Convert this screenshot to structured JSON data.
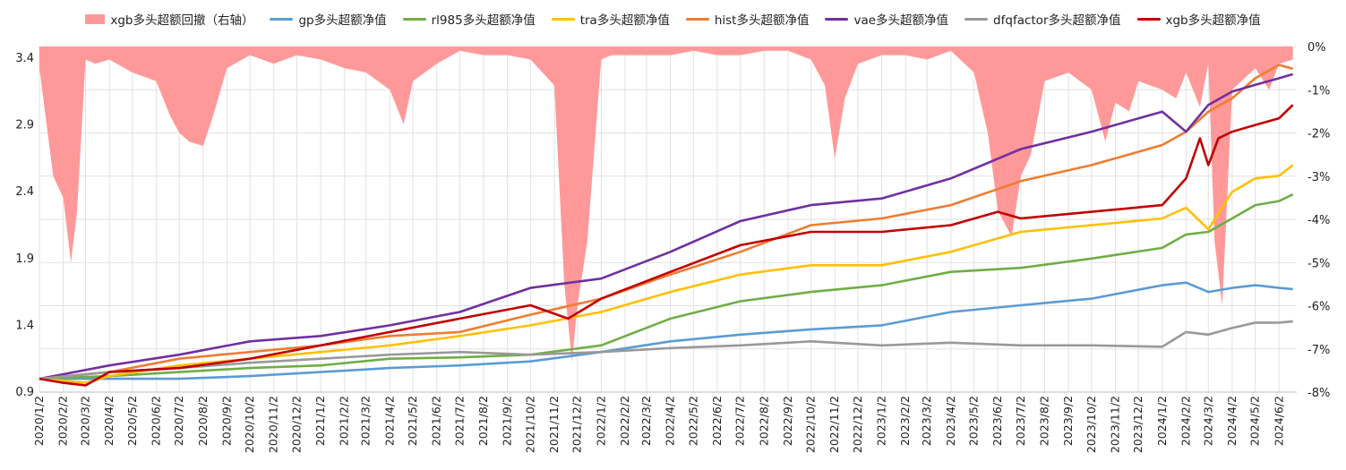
{
  "chart_data": {
    "type": "line",
    "title": "",
    "x_tick_labels": [
      "2020/1/2",
      "2020/2/2",
      "2020/3/2",
      "2020/4/2",
      "2020/5/2",
      "2020/6/2",
      "2020/7/2",
      "2020/8/2",
      "2020/9/2",
      "2020/10/2",
      "2020/11/2",
      "2020/12/2",
      "2021/1/2",
      "2021/2/2",
      "2021/3/2",
      "2021/4/2",
      "2021/5/2",
      "2021/6/2",
      "2021/7/2",
      "2021/8/2",
      "2021/9/2",
      "2021/10/2",
      "2021/11/2",
      "2021/12/2",
      "2022/1/2",
      "2022/2/2",
      "2022/3/2",
      "2022/4/2",
      "2022/5/2",
      "2022/6/2",
      "2022/7/2",
      "2022/8/2",
      "2022/9/2",
      "2022/10/2",
      "2022/11/2",
      "2022/12/2",
      "2023/1/2",
      "2023/2/2",
      "2023/3/2",
      "2023/4/2",
      "2023/5/2",
      "2023/6/2",
      "2023/7/2",
      "2023/8/2",
      "2023/9/2",
      "2023/10/2",
      "2023/11/2",
      "2023/12/2",
      "2024/1/2",
      "2024/2/2",
      "2024/3/2",
      "2024/4/2",
      "2024/5/2",
      "2024/6/2"
    ],
    "y_left": {
      "min": 0.9,
      "max": 3.4,
      "ticks": [
        "0.9",
        "1.4",
        "1.9",
        "2.4",
        "2.9",
        "3.4"
      ]
    },
    "y_right": {
      "min": -8,
      "max": 0,
      "ticks": [
        "0%",
        "-1%",
        "-2%",
        "-3%",
        "-4%",
        "-5%",
        "-6%",
        "-7%",
        "-8%"
      ]
    },
    "grid": true,
    "legend_position": "top",
    "area_series": {
      "name": "xgb多头超额回撤（右轴）",
      "color": "#ff9999",
      "x": [
        "2020/1/2",
        "2020/1/20",
        "2020/2/2",
        "2020/2/12",
        "2020/2/20",
        "2020/3/2",
        "2020/3/15",
        "2020/4/2",
        "2020/5/2",
        "2020/6/2",
        "2020/6/20",
        "2020/7/2",
        "2020/7/15",
        "2020/8/2",
        "2020/8/15",
        "2020/9/2",
        "2020/10/2",
        "2020/11/2",
        "2020/12/2",
        "2021/1/2",
        "2021/2/2",
        "2021/3/2",
        "2021/4/2",
        "2021/4/20",
        "2021/5/2",
        "2021/6/2",
        "2021/7/2",
        "2021/8/2",
        "2021/9/2",
        "2021/10/2",
        "2021/11/2",
        "2021/11/15",
        "2021/11/25",
        "2021/12/2",
        "2021/12/15",
        "2022/1/2",
        "2022/1/15",
        "2022/2/2",
        "2022/3/2",
        "2022/4/2",
        "2022/5/2",
        "2022/6/2",
        "2022/7/2",
        "2022/8/2",
        "2022/9/2",
        "2022/10/2",
        "2022/10/20",
        "2022/11/2",
        "2022/11/15",
        "2022/12/2",
        "2023/1/2",
        "2023/2/2",
        "2023/3/2",
        "2023/4/2",
        "2023/5/2",
        "2023/5/20",
        "2023/6/2",
        "2023/6/20",
        "2023/7/2",
        "2023/7/15",
        "2023/8/2",
        "2023/9/2",
        "2023/10/2",
        "2023/10/20",
        "2023/11/2",
        "2023/11/20",
        "2023/12/2",
        "2024/1/2",
        "2024/1/20",
        "2024/2/2",
        "2024/2/20",
        "2024/3/2",
        "2024/3/10",
        "2024/3/20",
        "2024/4/2",
        "2024/5/2",
        "2024/5/20",
        "2024/6/2",
        "2024/6/20"
      ],
      "values": [
        -0.5,
        -3.0,
        -3.5,
        -5.0,
        -3.8,
        -0.3,
        -0.4,
        -0.3,
        -0.6,
        -0.8,
        -1.6,
        -2.0,
        -2.2,
        -2.3,
        -1.6,
        -0.5,
        -0.2,
        -0.4,
        -0.2,
        -0.3,
        -0.5,
        -0.6,
        -1.0,
        -1.8,
        -0.8,
        -0.4,
        -0.1,
        -0.2,
        -0.2,
        -0.3,
        -0.9,
        -5.5,
        -7.3,
        -6.0,
        -4.5,
        -0.3,
        -0.2,
        -0.2,
        -0.2,
        -0.2,
        -0.1,
        -0.2,
        -0.2,
        -0.1,
        -0.1,
        -0.3,
        -0.9,
        -2.6,
        -1.2,
        -0.4,
        -0.2,
        -0.2,
        -0.3,
        -0.1,
        -0.6,
        -2.0,
        -3.8,
        -4.4,
        -3.0,
        -2.5,
        -0.8,
        -0.6,
        -1.0,
        -2.2,
        -1.3,
        -1.5,
        -0.8,
        -1.0,
        -1.2,
        -0.6,
        -1.4,
        -0.4,
        -4.5,
        -6.0,
        -1.0,
        -0.5,
        -1.0,
        -0.4,
        -0.3
      ]
    },
    "series": [
      {
        "name": "gp多头超额净值",
        "color": "#5b9bd5",
        "x": [
          "2020/1/2",
          "2020/4/2",
          "2020/7/2",
          "2020/10/2",
          "2021/1/2",
          "2021/4/2",
          "2021/7/2",
          "2021/10/2",
          "2022/1/2",
          "2022/4/2",
          "2022/7/2",
          "2022/10/2",
          "2023/1/2",
          "2023/4/2",
          "2023/7/2",
          "2023/10/2",
          "2024/1/2",
          "2024/2/2",
          "2024/3/2",
          "2024/4/2",
          "2024/5/2",
          "2024/6/2",
          "2024/6/20"
        ],
        "values": [
          1.0,
          1.0,
          1.0,
          1.02,
          1.05,
          1.08,
          1.1,
          1.13,
          1.2,
          1.28,
          1.33,
          1.37,
          1.4,
          1.5,
          1.55,
          1.6,
          1.7,
          1.72,
          1.65,
          1.68,
          1.7,
          1.68,
          1.67
        ]
      },
      {
        "name": "rl985多头超额净值",
        "color": "#70ad47",
        "x": [
          "2020/1/2",
          "2020/4/2",
          "2020/7/2",
          "2020/10/2",
          "2021/1/2",
          "2021/4/2",
          "2021/7/2",
          "2021/10/2",
          "2022/1/2",
          "2022/4/2",
          "2022/7/2",
          "2022/10/2",
          "2023/1/2",
          "2023/4/2",
          "2023/7/2",
          "2023/10/2",
          "2024/1/2",
          "2024/2/2",
          "2024/3/2",
          "2024/4/2",
          "2024/5/2",
          "2024/6/2",
          "2024/6/20"
        ],
        "values": [
          1.0,
          1.02,
          1.05,
          1.08,
          1.1,
          1.15,
          1.16,
          1.18,
          1.25,
          1.45,
          1.58,
          1.65,
          1.7,
          1.8,
          1.83,
          1.9,
          1.98,
          2.08,
          2.1,
          2.2,
          2.3,
          2.33,
          2.38
        ]
      },
      {
        "name": "tra多头超额净值",
        "color": "#ffc000",
        "x": [
          "2020/1/2",
          "2020/3/2",
          "2020/4/2",
          "2020/7/2",
          "2020/10/2",
          "2021/1/2",
          "2021/4/2",
          "2021/7/2",
          "2021/10/2",
          "2022/1/2",
          "2022/4/2",
          "2022/7/2",
          "2022/10/2",
          "2023/1/2",
          "2023/4/2",
          "2023/7/2",
          "2023/10/2",
          "2024/1/2",
          "2024/2/2",
          "2024/3/2",
          "2024/4/2",
          "2024/5/2",
          "2024/6/2",
          "2024/6/20"
        ],
        "values": [
          1.0,
          0.97,
          1.02,
          1.1,
          1.15,
          1.2,
          1.25,
          1.32,
          1.4,
          1.5,
          1.65,
          1.78,
          1.85,
          1.85,
          1.95,
          2.1,
          2.15,
          2.2,
          2.28,
          2.12,
          2.4,
          2.5,
          2.52,
          2.6
        ]
      },
      {
        "name": "hist多头超额净值",
        "color": "#ed7d31",
        "x": [
          "2020/1/2",
          "2020/4/2",
          "2020/7/2",
          "2020/10/2",
          "2021/1/2",
          "2021/4/2",
          "2021/7/2",
          "2021/10/2",
          "2022/1/2",
          "2022/4/2",
          "2022/7/2",
          "2022/10/2",
          "2023/1/2",
          "2023/4/2",
          "2023/7/2",
          "2023/10/2",
          "2024/1/2",
          "2024/2/2",
          "2024/3/2",
          "2024/4/2",
          "2024/5/2",
          "2024/6/2",
          "2024/6/20"
        ],
        "values": [
          1.0,
          1.05,
          1.15,
          1.2,
          1.25,
          1.32,
          1.35,
          1.48,
          1.6,
          1.78,
          1.95,
          2.15,
          2.2,
          2.3,
          2.48,
          2.6,
          2.75,
          2.85,
          3.0,
          3.1,
          3.25,
          3.35,
          3.32
        ]
      },
      {
        "name": "vae多头超额净值",
        "color": "#7030a0",
        "x": [
          "2020/1/2",
          "2020/4/2",
          "2020/7/2",
          "2020/10/2",
          "2021/1/2",
          "2021/4/2",
          "2021/7/2",
          "2021/10/2",
          "2022/1/2",
          "2022/4/2",
          "2022/7/2",
          "2022/10/2",
          "2023/1/2",
          "2023/4/2",
          "2023/7/2",
          "2023/10/2",
          "2024/1/2",
          "2024/2/2",
          "2024/3/2",
          "2024/4/2",
          "2024/5/2",
          "2024/6/2",
          "2024/6/20"
        ],
        "values": [
          1.0,
          1.1,
          1.18,
          1.28,
          1.32,
          1.4,
          1.5,
          1.68,
          1.75,
          1.95,
          2.18,
          2.3,
          2.35,
          2.5,
          2.72,
          2.85,
          3.0,
          2.85,
          3.05,
          3.15,
          3.2,
          3.25,
          3.28
        ]
      },
      {
        "name": "dfqfactor多头超额净值",
        "color": "#999999",
        "x": [
          "2020/1/2",
          "2020/4/2",
          "2020/7/2",
          "2020/10/2",
          "2021/1/2",
          "2021/4/2",
          "2021/7/2",
          "2021/10/2",
          "2022/1/2",
          "2022/4/2",
          "2022/7/2",
          "2022/10/2",
          "2023/1/2",
          "2023/4/2",
          "2023/7/2",
          "2023/10/2",
          "2024/1/2",
          "2024/2/2",
          "2024/3/2",
          "2024/4/2",
          "2024/5/2",
          "2024/6/2",
          "2024/6/20"
        ],
        "values": [
          1.0,
          1.05,
          1.08,
          1.12,
          1.15,
          1.18,
          1.2,
          1.18,
          1.2,
          1.23,
          1.25,
          1.28,
          1.25,
          1.27,
          1.25,
          1.25,
          1.24,
          1.35,
          1.33,
          1.38,
          1.42,
          1.42,
          1.43
        ]
      },
      {
        "name": "xgb多头超额净值",
        "color": "#c00000",
        "x": [
          "2020/1/2",
          "2020/2/2",
          "2020/3/2",
          "2020/4/2",
          "2020/7/2",
          "2020/10/2",
          "2021/1/2",
          "2021/4/2",
          "2021/7/2",
          "2021/10/2",
          "2021/11/20",
          "2022/1/2",
          "2022/4/2",
          "2022/7/2",
          "2022/10/2",
          "2023/1/2",
          "2023/4/2",
          "2023/6/2",
          "2023/7/2",
          "2023/10/2",
          "2024/1/2",
          "2024/2/2",
          "2024/2/20",
          "2024/3/2",
          "2024/3/15",
          "2024/4/2",
          "2024/5/2",
          "2024/6/2",
          "2024/6/20"
        ],
        "values": [
          1.0,
          0.97,
          0.95,
          1.05,
          1.08,
          1.15,
          1.25,
          1.35,
          1.45,
          1.55,
          1.45,
          1.6,
          1.8,
          2.0,
          2.1,
          2.1,
          2.15,
          2.25,
          2.2,
          2.25,
          2.3,
          2.5,
          2.8,
          2.6,
          2.8,
          2.85,
          2.9,
          2.95,
          3.05
        ]
      }
    ]
  }
}
